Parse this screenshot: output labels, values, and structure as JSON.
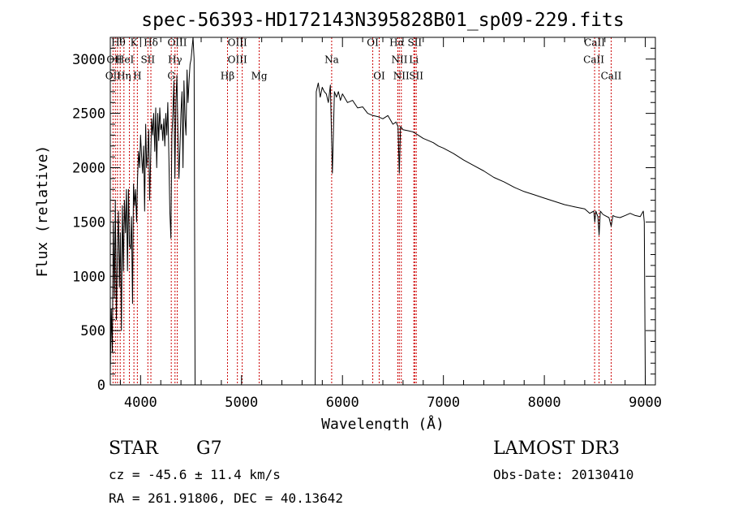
{
  "chart_data": {
    "type": "line",
    "title": "spec-56393-HD172143N395828B01_sp09-229.fits",
    "xlabel": "Wavelength (Å)",
    "ylabel": "Flux (relative)",
    "xlim": [
      3700,
      9100
    ],
    "ylim": [
      0,
      3200
    ],
    "xticks": [
      4000,
      5000,
      6000,
      7000,
      8000,
      9000
    ],
    "yticks": [
      0,
      500,
      1000,
      1500,
      2000,
      2500,
      3000
    ],
    "xtick_labels": [
      "4000",
      "5000",
      "6000",
      "7000",
      "8000",
      "9000"
    ],
    "ytick_labels": [
      "0",
      "500",
      "1000",
      "1500",
      "2000",
      "2500",
      "3000"
    ],
    "grid": false,
    "series": [
      {
        "name": "flux",
        "segments": [
          {
            "x": [
              3700,
              3710,
              3720,
              3730,
              3740,
              3750,
              3760,
              3770,
              3780,
              3790,
              3800,
              3810,
              3820,
              3830,
              3840,
              3850,
              3860,
              3870,
              3880,
              3890,
              3900,
              3910,
              3920,
              3930,
              3940,
              3950,
              3960,
              3970,
              3980,
              3990,
              4000,
              4010,
              4020,
              4030,
              4040,
              4050,
              4060,
              4070,
              4080,
              4090,
              4100,
              4110,
              4120,
              4130,
              4140,
              4150,
              4160,
              4170,
              4180,
              4190,
              4200,
              4210,
              4220,
              4230,
              4240,
              4250,
              4260,
              4270,
              4280,
              4290,
              4300,
              4310,
              4320,
              4330,
              4340,
              4350,
              4360,
              4370,
              4380,
              4390,
              4400,
              4410,
              4420,
              4430,
              4440,
              4450,
              4460,
              4470,
              4480,
              4490,
              4500,
              4510,
              4520,
              4530,
              4540
            ],
            "y": [
              100,
              700,
              300,
              1500,
              800,
              1700,
              600,
              1200,
              1600,
              900,
              1400,
              500,
              1650,
              1050,
              1700,
              1400,
              1800,
              1050,
              1800,
              1300,
              1250,
              1550,
              750,
              1850,
              1650,
              1800,
              1500,
              1900,
              2150,
              2000,
              2300,
              2100,
              1950,
              2200,
              1600,
              2400,
              2000,
              2100,
              2350,
              1700,
              2100,
              2450,
              2300,
              2500,
              2150,
              2550,
              2000,
              2500,
              2250,
              2550,
              2350,
              2400,
              2250,
              2450,
              2200,
              2500,
              2300,
              2600,
              2100,
              1600,
              1350,
              2300,
              2500,
              2800,
              1900,
              2600,
              2850,
              2300,
              1900,
              2200,
              2500,
              2700,
              2000,
              2800,
              2450,
              2300,
              2900,
              2600,
              2800,
              2950,
              3000,
              3100,
              3200,
              3000,
              0
            ]
          },
          {
            "x": [
              5730,
              5740,
              5760,
              5780,
              5800,
              5820,
              5840,
              5860,
              5880,
              5900,
              5920,
              5940,
              5960,
              5980,
              6000,
              6050,
              6100,
              6150,
              6200,
              6250,
              6300,
              6350,
              6400,
              6450,
              6500,
              6530,
              6550,
              6563,
              6575,
              6600,
              6650,
              6700,
              6750,
              6800,
              6850,
              6900,
              6950,
              7000,
              7100,
              7200,
              7300,
              7400,
              7500,
              7600,
              7700,
              7800,
              7900,
              8000,
              8100,
              8200,
              8300,
              8400,
              8450,
              8490,
              8500,
              8510,
              8530,
              8542,
              8555,
              8580,
              8600,
              8640,
              8662,
              8680,
              8700,
              8750,
              8800,
              8850,
              8900,
              8950,
              8980,
              8990,
              9000
            ],
            "y": [
              0,
              2700,
              2780,
              2650,
              2740,
              2700,
              2680,
              2600,
              2760,
              1950,
              2700,
              2650,
              2700,
              2620,
              2680,
              2600,
              2620,
              2550,
              2560,
              2500,
              2480,
              2470,
              2450,
              2480,
              2400,
              2420,
              2380,
              1950,
              2380,
              2350,
              2340,
              2330,
              2300,
              2270,
              2250,
              2230,
              2200,
              2180,
              2130,
              2070,
              2020,
              1970,
              1910,
              1870,
              1820,
              1780,
              1750,
              1720,
              1690,
              1660,
              1640,
              1620,
              1580,
              1600,
              1500,
              1600,
              1550,
              1380,
              1600,
              1570,
              1560,
              1540,
              1460,
              1560,
              1550,
              1540,
              1560,
              1580,
              1560,
              1550,
              1600,
              1500,
              0
            ]
          }
        ]
      }
    ],
    "line_markers": [
      {
        "wavelength": 3727,
        "label": "OII"
      },
      {
        "wavelength": 3750,
        "label": "OII"
      },
      {
        "wavelength": 3771,
        "label": "Hθ"
      },
      {
        "wavelength": 3798,
        "label": "HeI"
      },
      {
        "wavelength": 3835,
        "label": "Hη"
      },
      {
        "wavelength": 3889,
        "label": "HeI"
      },
      {
        "wavelength": 3934,
        "label": "K"
      },
      {
        "wavelength": 3968,
        "label": "H"
      },
      {
        "wavelength": 4072,
        "label": "SII"
      },
      {
        "wavelength": 4102,
        "label": "Hδ"
      },
      {
        "wavelength": 4304,
        "label": "G"
      },
      {
        "wavelength": 4341,
        "label": "Hγ"
      },
      {
        "wavelength": 4363,
        "label": "OIII"
      },
      {
        "wavelength": 4861,
        "label": "Hβ"
      },
      {
        "wavelength": 4959,
        "label": "OIII"
      },
      {
        "wavelength": 5007,
        "label": "OIII"
      },
      {
        "wavelength": 5175,
        "label": "Mg"
      },
      {
        "wavelength": 5893,
        "label": "Na"
      },
      {
        "wavelength": 6300,
        "label": "OI"
      },
      {
        "wavelength": 6364,
        "label": "OI"
      },
      {
        "wavelength": 6548,
        "label": "NII"
      },
      {
        "wavelength": 6563,
        "label": "Hα"
      },
      {
        "wavelength": 6583,
        "label": "NII"
      },
      {
        "wavelength": 6707,
        "label": "Li"
      },
      {
        "wavelength": 6716,
        "label": "SII"
      },
      {
        "wavelength": 6731,
        "label": "SII"
      },
      {
        "wavelength": 8498,
        "label": "CaII"
      },
      {
        "wavelength": 8542,
        "label": "CaII"
      },
      {
        "wavelength": 8662,
        "label": "CaII"
      }
    ],
    "marker_labels": [
      {
        "text": "Hθ",
        "x": 3780,
        "y": 3120
      },
      {
        "text": "K",
        "x": 3934,
        "y": 3120
      },
      {
        "text": "Hδ",
        "x": 4102,
        "y": 3120
      },
      {
        "text": "OIII",
        "x": 4363,
        "y": 3120
      },
      {
        "text": "OIII",
        "x": 4959,
        "y": 3120
      },
      {
        "text": "OI",
        "x": 6300,
        "y": 3120
      },
      {
        "text": "Hα",
        "x": 6540,
        "y": 3120
      },
      {
        "text": "SII",
        "x": 6716,
        "y": 3120
      },
      {
        "text": "CaII",
        "x": 8498,
        "y": 3120
      },
      {
        "text": "OII",
        "x": 3740,
        "y": 2965
      },
      {
        "text": "HeI",
        "x": 3845,
        "y": 2965
      },
      {
        "text": "SII",
        "x": 4072,
        "y": 2965
      },
      {
        "text": "Hγ",
        "x": 4341,
        "y": 2965
      },
      {
        "text": "OIII",
        "x": 4959,
        "y": 2965
      },
      {
        "text": "Na",
        "x": 5893,
        "y": 2965
      },
      {
        "text": "NII",
        "x": 6565,
        "y": 2965
      },
      {
        "text": "Li",
        "x": 6707,
        "y": 2965
      },
      {
        "text": "CaII",
        "x": 8490,
        "y": 2965
      },
      {
        "text": "OII",
        "x": 3727,
        "y": 2815
      },
      {
        "text": "Hη",
        "x": 3835,
        "y": 2815
      },
      {
        "text": "H",
        "x": 3968,
        "y": 2815
      },
      {
        "text": "G",
        "x": 4304,
        "y": 2815
      },
      {
        "text": "Hβ",
        "x": 4861,
        "y": 2815
      },
      {
        "text": "Mg",
        "x": 5175,
        "y": 2815
      },
      {
        "text": "OI",
        "x": 6364,
        "y": 2815
      },
      {
        "text": "NII",
        "x": 6583,
        "y": 2815
      },
      {
        "text": "SII",
        "x": 6731,
        "y": 2815
      },
      {
        "text": "CaII",
        "x": 8662,
        "y": 2815
      }
    ]
  },
  "colors": {
    "spectrum": "#000000",
    "marker_line": "#cc0000",
    "axes": "#000000",
    "background": "#ffffff"
  },
  "info": {
    "object_class": "STAR",
    "subclass": "G7",
    "survey": "LAMOST DR3",
    "redshift": "cz = -45.6 ± 11.4 km/s",
    "obs_date": "Obs-Date: 20130410",
    "coordinates": "RA = 261.91806, DEC =  40.13642"
  }
}
